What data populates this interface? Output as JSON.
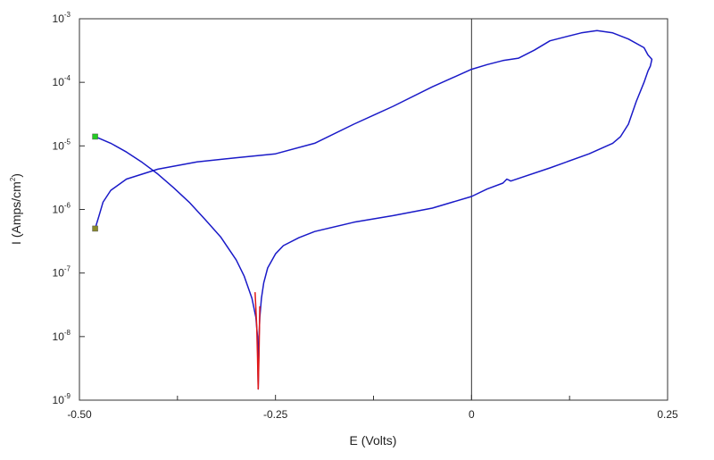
{
  "chart_data": {
    "type": "line",
    "title": "",
    "xlabel": "E (Volts)",
    "ylabel_parts": [
      "I (Amps/cm",
      "2",
      ")"
    ],
    "x_scale": "linear",
    "y_scale": "log",
    "xlim": [
      -0.5,
      0.25
    ],
    "ylim": [
      1e-09,
      0.001
    ],
    "x_ticks": [
      {
        "value": -0.5,
        "label": "-0.50"
      },
      {
        "value": -0.25,
        "label": "-0.25"
      },
      {
        "value": 0,
        "label": "0"
      },
      {
        "value": 0.25,
        "label": "0.25"
      }
    ],
    "x_minor_ticks": [
      -0.375,
      -0.125,
      0.125
    ],
    "y_ticks": [
      {
        "value": 1e-09,
        "exp": "-9"
      },
      {
        "value": 1e-08,
        "exp": "-8"
      },
      {
        "value": 1e-07,
        "exp": "-7"
      },
      {
        "value": 1e-06,
        "exp": "-6"
      },
      {
        "value": 1e-05,
        "exp": "-5"
      },
      {
        "value": 0.0001,
        "exp": "-4"
      },
      {
        "value": 0.001,
        "exp": "-3"
      }
    ],
    "y_tick_base": "10",
    "grid": false,
    "reference_line_x": 0,
    "series": [
      {
        "color": "#1a1ac8",
        "x": [
          -0.48,
          -0.46,
          -0.44,
          -0.42,
          -0.4,
          -0.38,
          -0.36,
          -0.34,
          -0.32,
          -0.3,
          -0.29,
          -0.28,
          -0.275,
          -0.273,
          -0.272,
          -0.271,
          -0.27,
          -0.268,
          -0.265,
          -0.26,
          -0.25,
          -0.24,
          -0.22,
          -0.2,
          -0.15,
          -0.1,
          -0.05,
          0,
          0.02,
          0.04,
          0.045,
          0.05,
          0.1,
          0.15,
          0.18,
          0.19,
          0.2,
          0.21,
          0.22,
          0.225,
          0.228,
          0.23,
          0.225,
          0.22,
          0.2,
          0.18,
          0.16,
          0.14,
          0.12,
          0.1,
          0.08,
          0.06,
          0.04,
          0.02,
          0,
          -0.05,
          -0.1,
          -0.15,
          -0.2,
          -0.25,
          -0.3,
          -0.35,
          -0.4,
          -0.44,
          -0.46,
          -0.47,
          -0.475,
          -0.48
        ],
        "y": [
          1.4e-05,
          1.1e-05,
          8e-06,
          5.5e-06,
          3.6e-06,
          2.2e-06,
          1.3e-06,
          7e-07,
          3.7e-07,
          1.6e-07,
          9e-08,
          4e-08,
          2e-08,
          1e-08,
          1.5e-09,
          1e-08,
          2e-08,
          4e-08,
          7e-08,
          1.2e-07,
          2e-07,
          2.7e-07,
          3.6e-07,
          4.5e-07,
          6.3e-07,
          8e-07,
          1.05e-06,
          1.6e-06,
          2.1e-06,
          2.6e-06,
          3e-06,
          2.8e-06,
          4.5e-06,
          7.5e-06,
          1.1e-05,
          1.4e-05,
          2.2e-05,
          5e-05,
          0.0001,
          0.00015,
          0.00018,
          0.00023,
          0.00027,
          0.00035,
          0.00048,
          0.0006,
          0.00065,
          0.0006,
          0.00052,
          0.00045,
          0.00032,
          0.00024,
          0.00022,
          0.00019,
          0.00016,
          8.5e-05,
          4.2e-05,
          2.2e-05,
          1.1e-05,
          7.5e-06,
          6.5e-06,
          5.6e-06,
          4.3e-06,
          3e-06,
          2e-06,
          1.3e-06,
          8e-07,
          5e-07
        ]
      },
      {
        "color": "#e01818",
        "x": [
          -0.276,
          -0.274,
          -0.273,
          -0.272,
          -0.271,
          -0.27
        ],
        "y": [
          5e-08,
          1.5e-08,
          5e-09,
          1.5e-09,
          5e-09,
          3e-08
        ]
      }
    ],
    "markers": [
      {
        "x": -0.48,
        "y": 1.4e-05,
        "color": "#22cc22"
      },
      {
        "x": -0.48,
        "y": 5e-07,
        "color": "#8a8a2a"
      }
    ]
  }
}
